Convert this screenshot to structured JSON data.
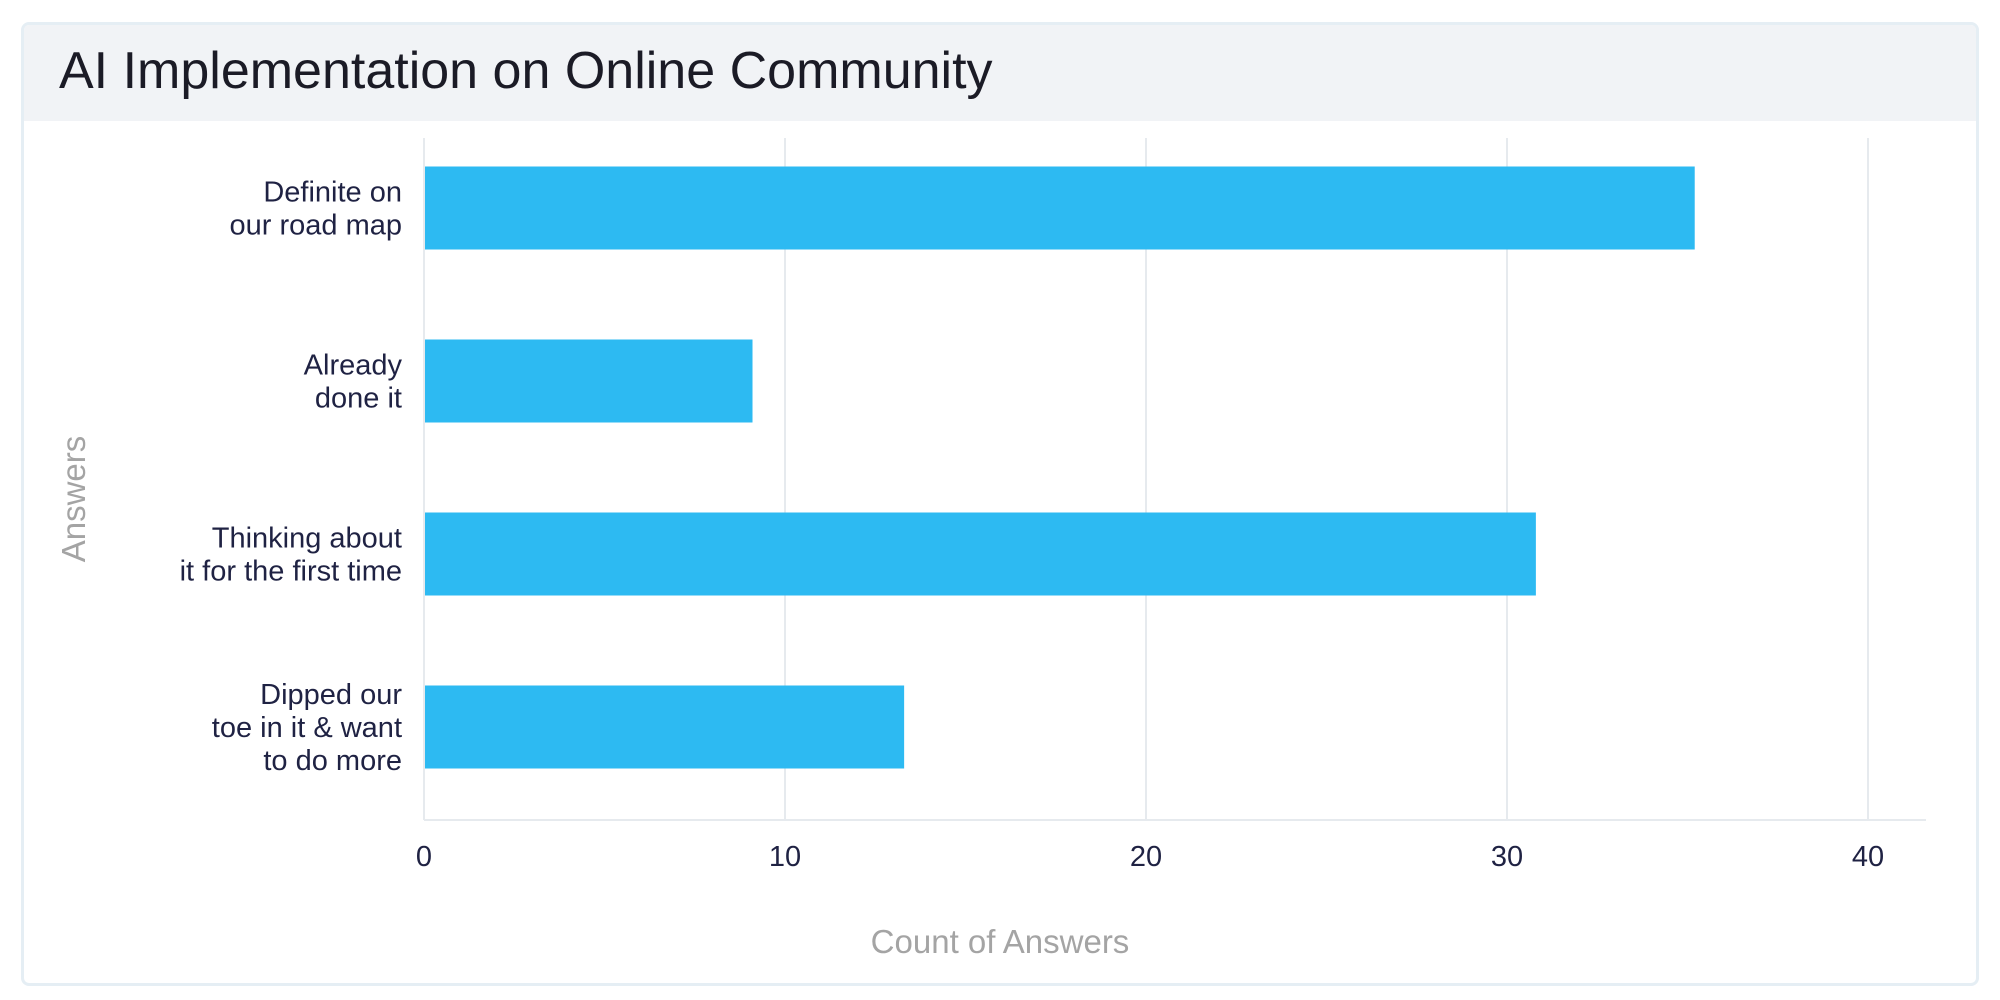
{
  "chart_data": {
    "type": "bar",
    "orientation": "horizontal",
    "title": "AI Implementation on Online Community",
    "xlabel": "Count of Answers",
    "ylabel": "Answers",
    "xlim": [
      0,
      42
    ],
    "xticks": [
      0,
      10,
      20,
      30,
      40
    ],
    "grid": true,
    "categories": [
      [
        "Definite on",
        "our road map"
      ],
      [
        "Already",
        "done it"
      ],
      [
        "Thinking about",
        "it for the first time"
      ],
      [
        "Dipped our",
        "toe in it & want",
        "to do more"
      ]
    ],
    "values": [
      35.2,
      9.1,
      30.8,
      13.3
    ],
    "colors": {
      "bar": "#2dbaf2",
      "grid": "#e6eaee",
      "tick_text": "#1f2243",
      "axis_title": "#a4a4a4"
    }
  }
}
